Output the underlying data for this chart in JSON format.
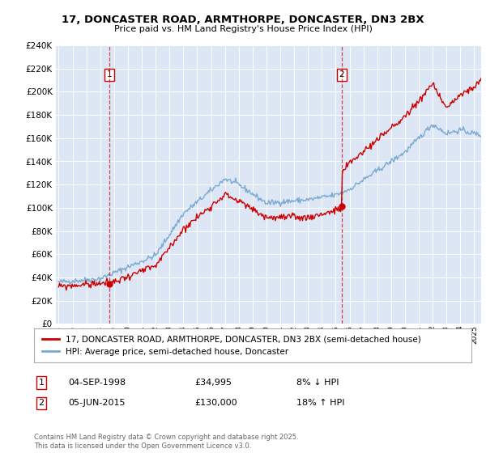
{
  "title_line1": "17, DONCASTER ROAD, ARMTHORPE, DONCASTER, DN3 2BX",
  "title_line2": "Price paid vs. HM Land Registry's House Price Index (HPI)",
  "legend_line1": "17, DONCASTER ROAD, ARMTHORPE, DONCASTER, DN3 2BX (semi-detached house)",
  "legend_line2": "HPI: Average price, semi-detached house, Doncaster",
  "marker1_date": "04-SEP-1998",
  "marker1_price": "£34,995",
  "marker1_hpi": "8% ↓ HPI",
  "marker2_date": "05-JUN-2015",
  "marker2_price": "£130,000",
  "marker2_hpi": "18% ↑ HPI",
  "copyright_text": "Contains HM Land Registry data © Crown copyright and database right 2025.\nThis data is licensed under the Open Government Licence v3.0.",
  "background_color": "#dce6f5",
  "red_line_color": "#cc0000",
  "blue_line_color": "#7aaad0",
  "grid_color": "#ffffff",
  "ylim_min": 0,
  "ylim_max": 240000,
  "ytick_step": 20000,
  "xstart_year": 1995,
  "xend_year": 2026,
  "marker1_x": 1998.67,
  "marker2_x": 2015.43
}
